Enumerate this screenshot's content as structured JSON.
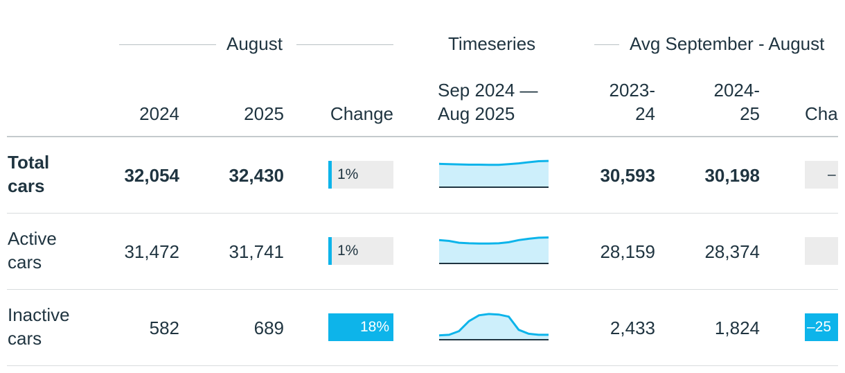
{
  "header": {
    "group_august": "August",
    "group_timeseries": "Timeseries",
    "group_avg": "Avg September - August",
    "col_2024": "2024",
    "col_2025": "2025",
    "col_change": "Change",
    "col_period_line1": "Sep 2024 —",
    "col_period_line2": "Aug 2025",
    "col_avg1_line1": "2023-",
    "col_avg1_line2": "24",
    "col_avg2_line1": "2024-",
    "col_avg2_line2": "25",
    "col_avg_change": "Cha"
  },
  "colors": {
    "accent": "#0db4ea",
    "track": "#ececec",
    "text": "#1f3440",
    "spark_fill": "#cdeffb"
  },
  "rows": [
    {
      "label_line1": "Total",
      "label_line2": "cars",
      "aug_2024": "32,054",
      "aug_2025": "32,430",
      "change": "1%",
      "change_fraction": 0.01,
      "avg_2023_24": "30,593",
      "avg_2024_25": "30,198",
      "avg_change": "–",
      "series": [
        0.86,
        0.85,
        0.84,
        0.83,
        0.83,
        0.82,
        0.82,
        0.85,
        0.88,
        0.92,
        0.96,
        0.97
      ]
    },
    {
      "label_line1": "Active",
      "label_line2": "cars",
      "aug_2024": "31,472",
      "aug_2025": "31,741",
      "change": "1%",
      "change_fraction": 0.01,
      "avg_2023_24": "28,159",
      "avg_2024_25": "28,374",
      "avg_change": "",
      "series": [
        0.86,
        0.83,
        0.76,
        0.74,
        0.73,
        0.73,
        0.74,
        0.78,
        0.86,
        0.91,
        0.95,
        0.96
      ]
    },
    {
      "label_line1": "Inactive",
      "label_line2": "cars",
      "aug_2024": "582",
      "aug_2025": "689",
      "change": "18%",
      "change_fraction": 0.18,
      "avg_2023_24": "2,433",
      "avg_2024_25": "1,824",
      "avg_change": "–25",
      "series": [
        0.14,
        0.16,
        0.3,
        0.68,
        0.9,
        0.95,
        0.93,
        0.85,
        0.35,
        0.2,
        0.16,
        0.16
      ]
    }
  ]
}
